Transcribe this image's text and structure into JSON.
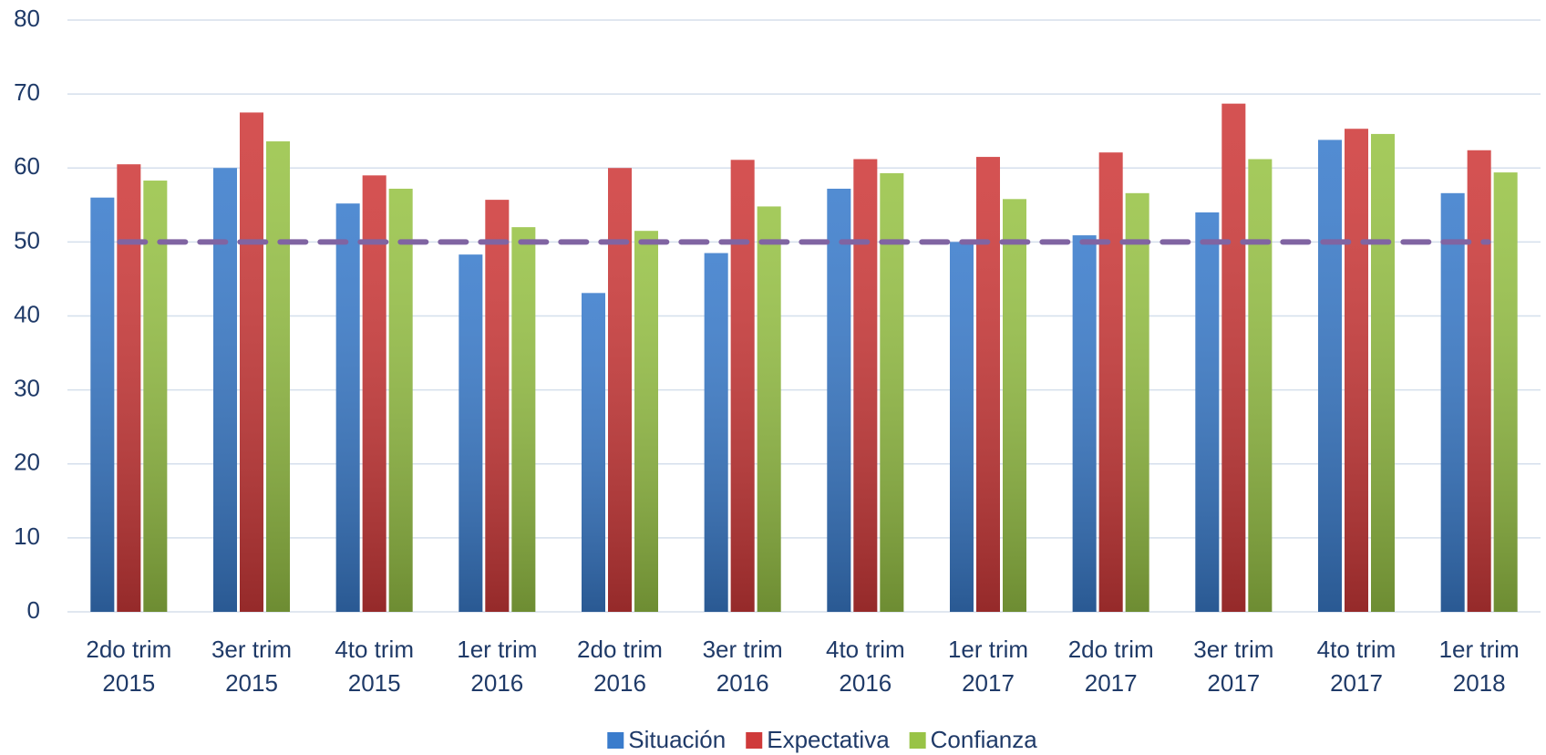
{
  "chart_data": {
    "type": "bar",
    "categories": [
      [
        "2do trim",
        "2015"
      ],
      [
        "3er trim",
        "2015"
      ],
      [
        "4to trim",
        "2015"
      ],
      [
        "1er trim",
        "2016"
      ],
      [
        "2do trim",
        "2016"
      ],
      [
        "3er trim",
        "2016"
      ],
      [
        "4to trim",
        "2016"
      ],
      [
        "1er trim",
        "2017"
      ],
      [
        "2do trim",
        "2017"
      ],
      [
        "3er trim",
        "2017"
      ],
      [
        "4to trim",
        "2017"
      ],
      [
        "1er trim",
        "2018"
      ]
    ],
    "series": [
      {
        "name": "Situación",
        "color": "#3a7ccc",
        "values": [
          56,
          60,
          55.2,
          48.3,
          43.1,
          48.5,
          57.2,
          50,
          50.9,
          54,
          63.8,
          56.6
        ]
      },
      {
        "name": "Expectativa",
        "color": "#cf3a3a",
        "values": [
          60.5,
          67.5,
          59,
          55.7,
          60,
          61.1,
          61.2,
          61.5,
          62.1,
          68.7,
          65.3,
          62.4
        ]
      },
      {
        "name": "Confianza",
        "color": "#98c346",
        "values": [
          58.3,
          63.6,
          57.2,
          52,
          51.5,
          54.8,
          59.3,
          55.8,
          56.6,
          61.2,
          64.6,
          59.4
        ]
      }
    ],
    "threshold": 50,
    "threshold_color": "#8064a2",
    "ylim": [
      0,
      80
    ],
    "yticks": [
      0,
      10,
      20,
      30,
      40,
      50,
      60,
      70,
      80
    ],
    "grid": true,
    "legend": "bottom"
  }
}
